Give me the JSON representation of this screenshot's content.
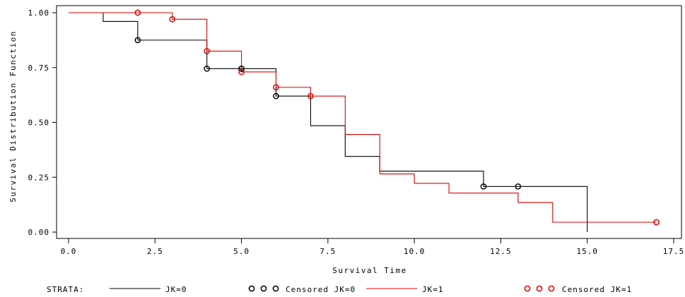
{
  "chart_data": {
    "type": "line",
    "step": true,
    "xlabel": "Survival Time",
    "ylabel": "Survival Distribution Function",
    "xlim": [
      0,
      17.5
    ],
    "ylim": [
      0,
      1
    ],
    "xticks": [
      0,
      2.5,
      5,
      7.5,
      10,
      12.5,
      15,
      17.5
    ],
    "xtick_labels": [
      "0.0",
      "2.5",
      "5.0",
      "7.5",
      "10.0",
      "12.5",
      "15.0",
      "17.5"
    ],
    "yticks": [
      0,
      0.25,
      0.5,
      0.75,
      1
    ],
    "ytick_labels": [
      "0.00",
      "0.25",
      "0.50",
      "0.75",
      "1.00"
    ],
    "grid": false,
    "legend_title": "STRATA:",
    "series": [
      {
        "name": "JK=0",
        "color": "#000000",
        "steps": [
          [
            0,
            1.0
          ],
          [
            1,
            0.96
          ],
          [
            2,
            0.875
          ],
          [
            4,
            0.745
          ],
          [
            6,
            0.62
          ],
          [
            7,
            0.485
          ],
          [
            8,
            0.345
          ],
          [
            9,
            0.278
          ],
          [
            12,
            0.208
          ],
          [
            15,
            0.0
          ]
        ],
        "censored_name": "Censored JK=0",
        "censored": [
          [
            2,
            0.875
          ],
          [
            4,
            0.745
          ],
          [
            5,
            0.745
          ],
          [
            5,
            0.745
          ],
          [
            6,
            0.62
          ],
          [
            12,
            0.208
          ],
          [
            13,
            0.208
          ]
        ]
      },
      {
        "name": "JK=1",
        "color": "#e00000",
        "steps": [
          [
            0,
            1.0
          ],
          [
            3,
            0.97
          ],
          [
            4,
            0.825
          ],
          [
            5,
            0.73
          ],
          [
            6,
            0.66
          ],
          [
            7,
            0.62
          ],
          [
            8,
            0.445
          ],
          [
            9,
            0.265
          ],
          [
            10,
            0.222
          ],
          [
            11,
            0.178
          ],
          [
            13,
            0.135
          ],
          [
            14,
            0.045
          ],
          [
            17,
            0.045
          ]
        ],
        "censored_name": "Censored JK=1",
        "censored": [
          [
            2,
            1.0
          ],
          [
            3,
            0.97
          ],
          [
            4,
            0.825
          ],
          [
            5,
            0.73
          ],
          [
            6,
            0.66
          ],
          [
            7,
            0.62
          ],
          [
            17,
            0.045
          ]
        ]
      }
    ]
  }
}
